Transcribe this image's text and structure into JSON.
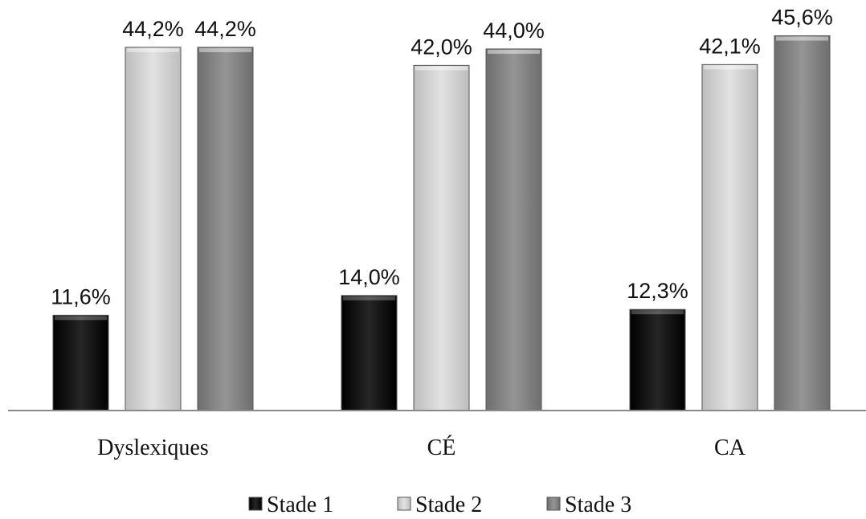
{
  "chart_data": {
    "type": "bar",
    "categories": [
      "Dyslexiques",
      "CÉ",
      "CA"
    ],
    "series": [
      {
        "name": "Stade 1",
        "values": [
          11.6,
          14.0,
          12.3
        ],
        "labels": [
          "11,6%",
          "14,0%",
          "12,3%"
        ],
        "color": "#1a1a1a"
      },
      {
        "name": "Stade 2",
        "values": [
          44.2,
          42.0,
          42.1
        ],
        "labels": [
          "44,2%",
          "42,0%",
          "42,1%"
        ],
        "color": "#d6d6d6"
      },
      {
        "name": "Stade 3",
        "values": [
          44.2,
          44.0,
          45.6
        ],
        "labels": [
          "44,2%",
          "44,0%",
          "45,6%"
        ],
        "color": "#8a8a8a"
      }
    ],
    "title": "",
    "xlabel": "",
    "ylabel": "",
    "ylim": [
      0,
      48
    ],
    "grid": false,
    "legend_position": "bottom"
  }
}
